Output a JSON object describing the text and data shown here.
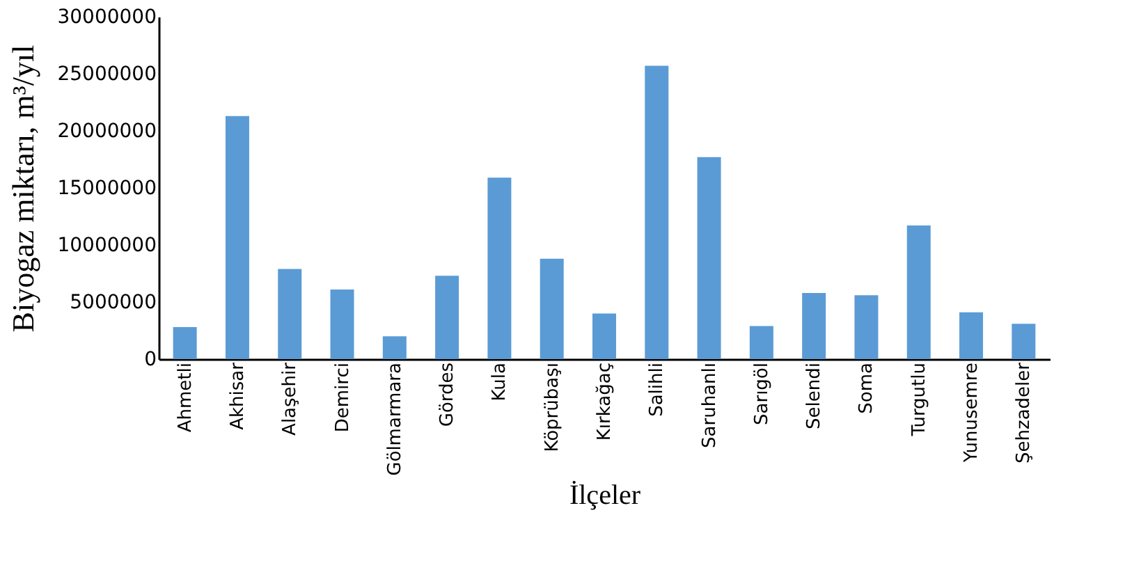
{
  "chart_data": {
    "type": "bar",
    "xlabel": "İlçeler",
    "ylabel": "Biyogaz miktarı, m³/yıl",
    "categories": [
      "Ahmetli",
      "Akhisar",
      "Alaşehir",
      "Demirci",
      "Gölmarmara",
      "Gördes",
      "Kula",
      "Köprübaşı",
      "Kırkağaç",
      "Salihli",
      "Saruhanlı",
      "Sarıgöl",
      "Selendi",
      "Soma",
      "Turgutlu",
      "Yunusemre",
      "Şehzadeler"
    ],
    "values": [
      2800000,
      21300000,
      7900000,
      6100000,
      2000000,
      7300000,
      15900000,
      8800000,
      4000000,
      25700000,
      17700000,
      2900000,
      5800000,
      5600000,
      11700000,
      4100000,
      3100000
    ],
    "color": "#5b9bd5",
    "ylim": [
      0,
      30000000
    ],
    "yticks": [
      0,
      5000000,
      10000000,
      15000000,
      20000000,
      25000000,
      30000000
    ],
    "grid": false
  }
}
